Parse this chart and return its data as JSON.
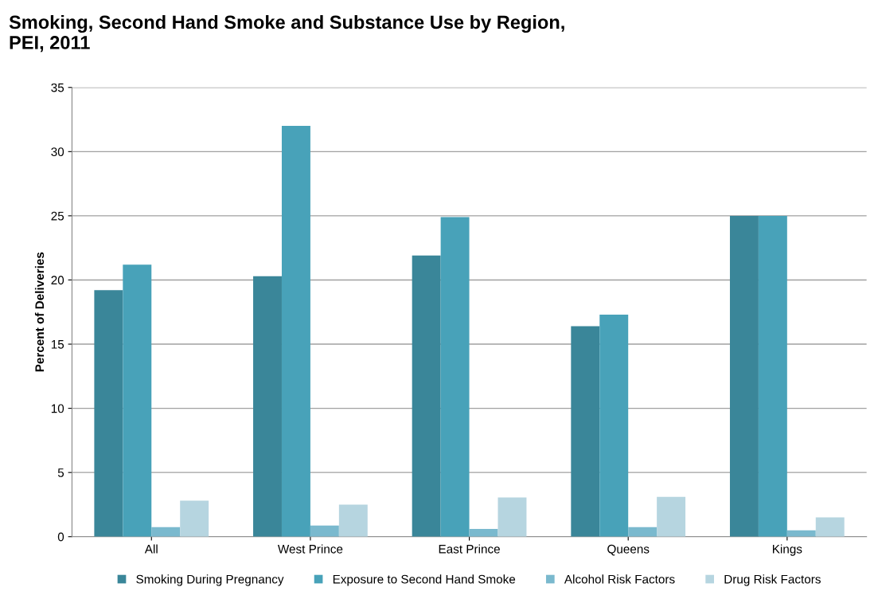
{
  "chart_data": {
    "type": "bar",
    "title": "Smoking, Second Hand Smoke and Substance Use by Region,\nPEI, 2011",
    "ylabel": "Percent of Deliveries",
    "categories": [
      "All",
      "West Prince",
      "East Prince",
      "Queens",
      "Kings"
    ],
    "series": [
      {
        "name": "Smoking During Pregnancy",
        "color": "#3a8699",
        "values": [
          19.2,
          20.3,
          21.9,
          16.4,
          25.0
        ]
      },
      {
        "name": "Exposure to Second Hand Smoke",
        "color": "#48a2b9",
        "values": [
          21.2,
          32.0,
          24.9,
          17.3,
          25.0
        ]
      },
      {
        "name": "Alcohol Risk Factors",
        "color": "#7ab9ce",
        "values": [
          0.75,
          0.87,
          0.6,
          0.75,
          0.5
        ]
      },
      {
        "name": "Drug Risk Factors",
        "color": "#b6d5e0",
        "values": [
          2.8,
          2.5,
          3.05,
          3.1,
          1.5
        ]
      }
    ],
    "ylim": [
      0,
      35
    ],
    "yticks": [
      0,
      5,
      10,
      15,
      20,
      25,
      30,
      35
    ],
    "grid": "y",
    "legend": "bottom"
  }
}
